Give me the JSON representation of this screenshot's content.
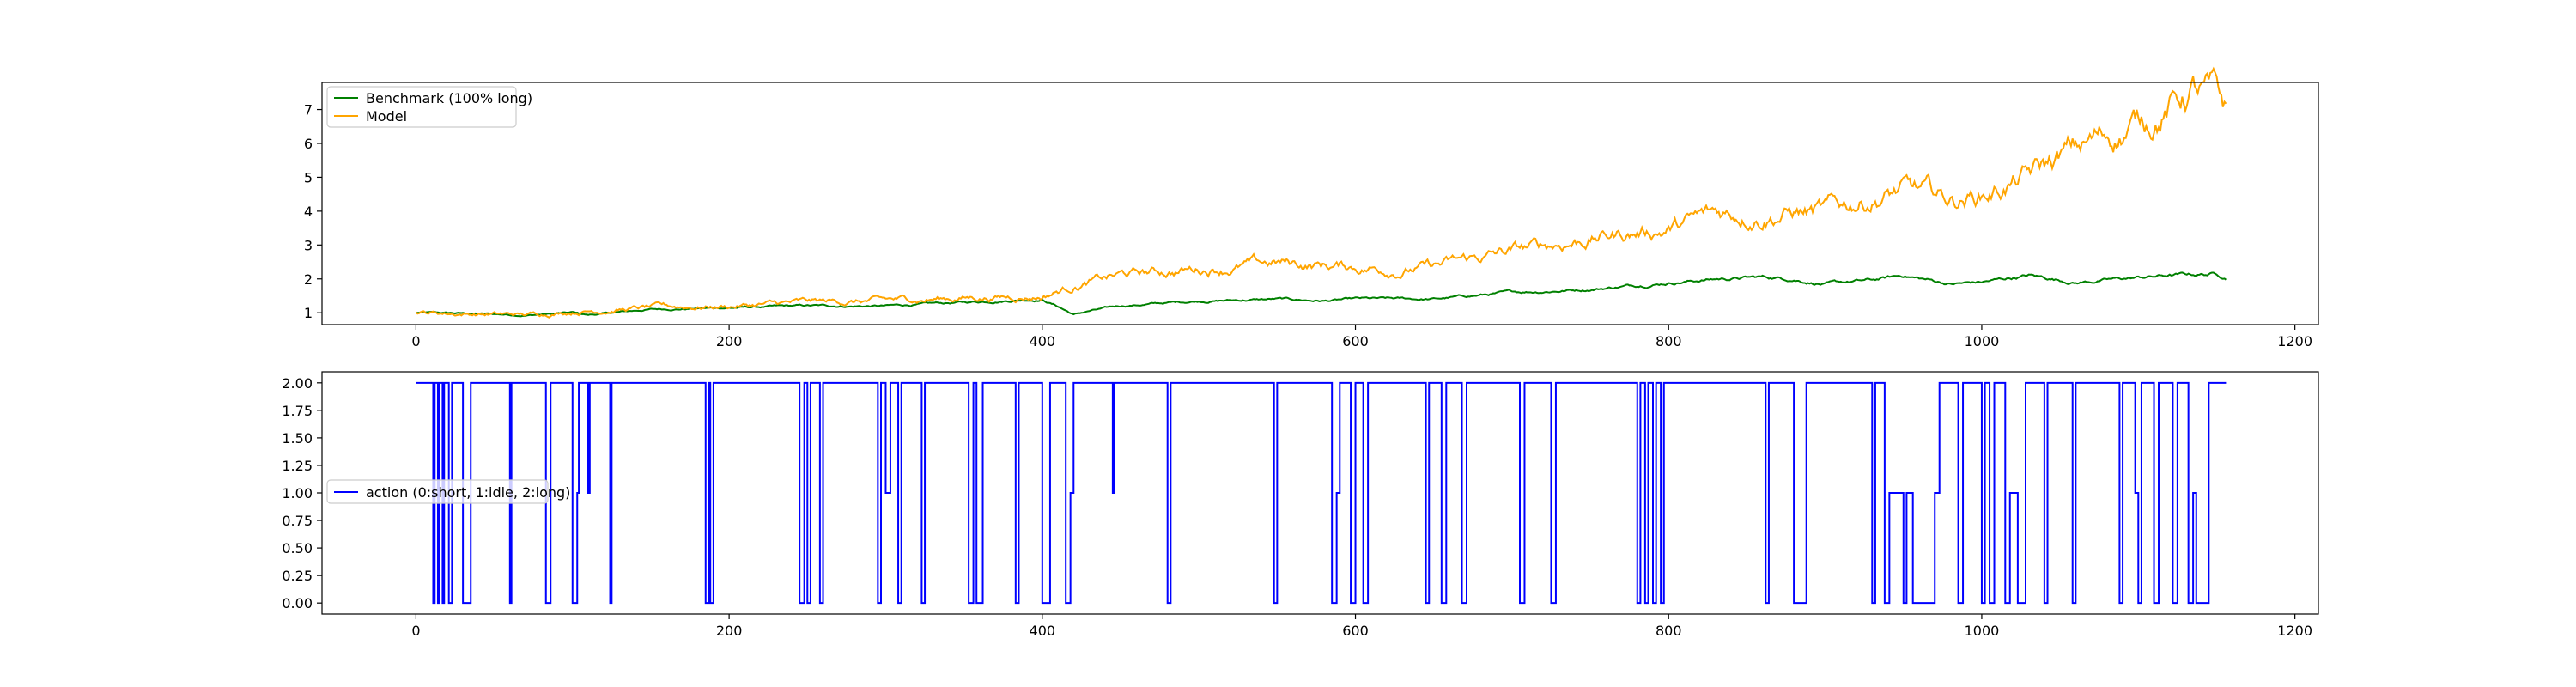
{
  "chart_data": [
    {
      "type": "line",
      "title": "",
      "xlabel": "",
      "ylabel": "",
      "xlim": [
        -60,
        1215
      ],
      "ylim": [
        0.65,
        7.8
      ],
      "x_ticks": [
        0,
        200,
        400,
        600,
        800,
        1000,
        1200
      ],
      "y_ticks": [
        1,
        2,
        3,
        4,
        5,
        6,
        7
      ],
      "grid": false,
      "legend_position": "top-left",
      "n_points": 1157,
      "series": [
        {
          "name": "Benchmark (100% long)",
          "color": "#008000",
          "anchors": [
            [
              0,
              1.0
            ],
            [
              40,
              0.97
            ],
            [
              70,
              0.93
            ],
            [
              100,
              1.0
            ],
            [
              110,
              0.93
            ],
            [
              150,
              1.1
            ],
            [
              200,
              1.15
            ],
            [
              250,
              1.2
            ],
            [
              300,
              1.2
            ],
            [
              350,
              1.3
            ],
            [
              390,
              1.4
            ],
            [
              400,
              1.4
            ],
            [
              410,
              1.2
            ],
            [
              420,
              0.95
            ],
            [
              430,
              1.05
            ],
            [
              450,
              1.2
            ],
            [
              500,
              1.35
            ],
            [
              550,
              1.4
            ],
            [
              580,
              1.35
            ],
            [
              600,
              1.4
            ],
            [
              650,
              1.4
            ],
            [
              700,
              1.6
            ],
            [
              750,
              1.7
            ],
            [
              800,
              1.9
            ],
            [
              830,
              2.0
            ],
            [
              860,
              2.05
            ],
            [
              880,
              2.0
            ],
            [
              900,
              1.85
            ],
            [
              930,
              1.95
            ],
            [
              950,
              2.1
            ],
            [
              980,
              1.85
            ],
            [
              1000,
              1.9
            ],
            [
              1030,
              2.1
            ],
            [
              1060,
              1.9
            ],
            [
              1090,
              2.0
            ],
            [
              1120,
              2.1
            ],
            [
              1150,
              2.15
            ],
            [
              1156,
              2.05
            ]
          ]
        },
        {
          "name": "Model",
          "color": "#ffa500",
          "anchors": [
            [
              0,
              1.0
            ],
            [
              40,
              0.97
            ],
            [
              70,
              0.93
            ],
            [
              100,
              1.05
            ],
            [
              150,
              1.15
            ],
            [
              200,
              1.2
            ],
            [
              250,
              1.3
            ],
            [
              300,
              1.35
            ],
            [
              350,
              1.45
            ],
            [
              400,
              1.5
            ],
            [
              420,
              1.8
            ],
            [
              450,
              2.1
            ],
            [
              500,
              2.3
            ],
            [
              550,
              2.45
            ],
            [
              580,
              2.4
            ],
            [
              600,
              2.35
            ],
            [
              630,
              2.3
            ],
            [
              650,
              2.35
            ],
            [
              700,
              2.8
            ],
            [
              750,
              3.2
            ],
            [
              800,
              3.5
            ],
            [
              830,
              3.9
            ],
            [
              850,
              3.95
            ],
            [
              880,
              4.0
            ],
            [
              900,
              3.95
            ],
            [
              930,
              4.4
            ],
            [
              950,
              4.6
            ],
            [
              980,
              4.3
            ],
            [
              1000,
              4.5
            ],
            [
              1030,
              5.0
            ],
            [
              1060,
              5.8
            ],
            [
              1090,
              6.4
            ],
            [
              1120,
              7.1
            ],
            [
              1135,
              7.6
            ],
            [
              1150,
              7.2
            ],
            [
              1156,
              6.8
            ]
          ]
        }
      ],
      "noise_amp": [
        0.03,
        0.08
      ]
    },
    {
      "type": "line",
      "step": true,
      "title": "",
      "xlabel": "",
      "ylabel": "",
      "xlim": [
        -60,
        1215
      ],
      "ylim": [
        -0.1,
        2.1
      ],
      "x_ticks": [
        0,
        200,
        400,
        600,
        800,
        1000,
        1200
      ],
      "y_ticks": [
        "0.00",
        "0.25",
        "0.50",
        "0.75",
        "1.00",
        "1.25",
        "1.50",
        "1.75",
        "2.00"
      ],
      "grid": false,
      "legend_position": "center-left",
      "series": [
        {
          "name": "action (0:short, 1:idle, 2:long)",
          "color": "#0000ff",
          "steps": [
            [
              0,
              2
            ],
            [
              11,
              0
            ],
            [
              12,
              2
            ],
            [
              14,
              0
            ],
            [
              15,
              2
            ],
            [
              17,
              0
            ],
            [
              18,
              2
            ],
            [
              21,
              0
            ],
            [
              23,
              2
            ],
            [
              30,
              0
            ],
            [
              35,
              2
            ],
            [
              60,
              0
            ],
            [
              61,
              2
            ],
            [
              83,
              0
            ],
            [
              86,
              2
            ],
            [
              100,
              0
            ],
            [
              103,
              1
            ],
            [
              104,
              2
            ],
            [
              110,
              1
            ],
            [
              111,
              2
            ],
            [
              124,
              0
            ],
            [
              125,
              2
            ],
            [
              185,
              0
            ],
            [
              187,
              2
            ],
            [
              188,
              0
            ],
            [
              190,
              2
            ],
            [
              245,
              0
            ],
            [
              248,
              2
            ],
            [
              250,
              0
            ],
            [
              252,
              2
            ],
            [
              258,
              0
            ],
            [
              260,
              2
            ],
            [
              295,
              0
            ],
            [
              297,
              2
            ],
            [
              300,
              1
            ],
            [
              303,
              2
            ],
            [
              308,
              0
            ],
            [
              310,
              2
            ],
            [
              323,
              0
            ],
            [
              325,
              2
            ],
            [
              353,
              0
            ],
            [
              356,
              2
            ],
            [
              358,
              0
            ],
            [
              362,
              2
            ],
            [
              383,
              0
            ],
            [
              385,
              2
            ],
            [
              400,
              0
            ],
            [
              405,
              2
            ],
            [
              415,
              0
            ],
            [
              418,
              1
            ],
            [
              420,
              2
            ],
            [
              445,
              1
            ],
            [
              446,
              2
            ],
            [
              480,
              0
            ],
            [
              482,
              2
            ],
            [
              548,
              0
            ],
            [
              550,
              2
            ],
            [
              585,
              0
            ],
            [
              588,
              1
            ],
            [
              590,
              2
            ],
            [
              597,
              0
            ],
            [
              600,
              2
            ],
            [
              605,
              0
            ],
            [
              608,
              2
            ],
            [
              645,
              0
            ],
            [
              647,
              2
            ],
            [
              655,
              0
            ],
            [
              658,
              2
            ],
            [
              668,
              0
            ],
            [
              671,
              2
            ],
            [
              705,
              0
            ],
            [
              708,
              2
            ],
            [
              725,
              0
            ],
            [
              728,
              2
            ],
            [
              780,
              0
            ],
            [
              782,
              2
            ],
            [
              785,
              0
            ],
            [
              787,
              2
            ],
            [
              790,
              0
            ],
            [
              792,
              2
            ],
            [
              795,
              0
            ],
            [
              797,
              2
            ],
            [
              862,
              0
            ],
            [
              864,
              2
            ],
            [
              880,
              0
            ],
            [
              888,
              2
            ],
            [
              930,
              0
            ],
            [
              932,
              2
            ],
            [
              938,
              0
            ],
            [
              941,
              1
            ],
            [
              950,
              0
            ],
            [
              952,
              1
            ],
            [
              956,
              0
            ],
            [
              970,
              1
            ],
            [
              973,
              2
            ],
            [
              985,
              0
            ],
            [
              988,
              2
            ],
            [
              1000,
              0
            ],
            [
              1002,
              2
            ],
            [
              1005,
              0
            ],
            [
              1008,
              2
            ],
            [
              1015,
              0
            ],
            [
              1018,
              1
            ],
            [
              1023,
              0
            ],
            [
              1028,
              2
            ],
            [
              1040,
              0
            ],
            [
              1042,
              2
            ],
            [
              1058,
              0
            ],
            [
              1060,
              2
            ],
            [
              1088,
              0
            ],
            [
              1090,
              2
            ],
            [
              1098,
              1
            ],
            [
              1100,
              0
            ],
            [
              1102,
              2
            ],
            [
              1110,
              0
            ],
            [
              1113,
              2
            ],
            [
              1122,
              0
            ],
            [
              1125,
              2
            ],
            [
              1132,
              0
            ],
            [
              1135,
              1
            ],
            [
              1137,
              0
            ],
            [
              1145,
              2
            ],
            [
              1156,
              2
            ]
          ]
        }
      ]
    }
  ]
}
